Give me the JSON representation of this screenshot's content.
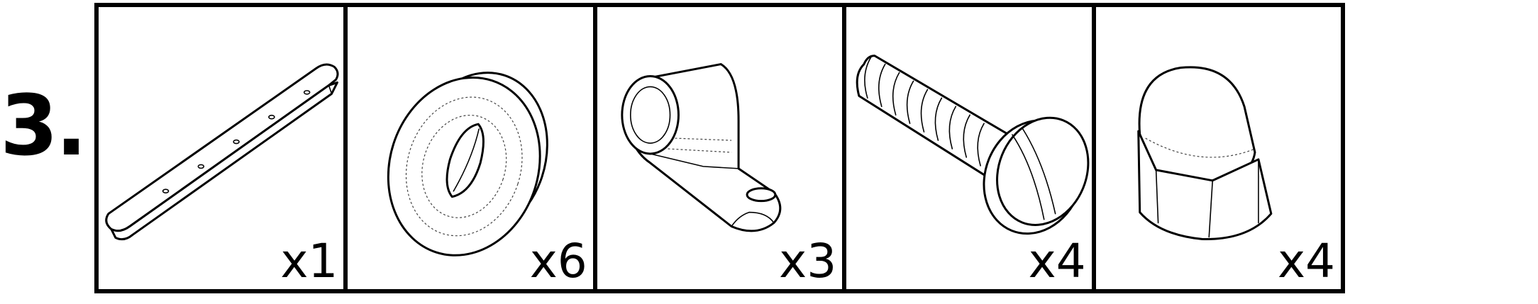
{
  "step": {
    "number": "3."
  },
  "parts": [
    {
      "name": "slotted-bar",
      "icon": "flat-bar-icon",
      "quantity": "x1"
    },
    {
      "name": "rubber-grommet",
      "icon": "grommet-icon",
      "quantity": "x6"
    },
    {
      "name": "cable-clamp",
      "icon": "cable-clamp-icon",
      "quantity": "x3"
    },
    {
      "name": "slotted-screw",
      "icon": "screw-icon",
      "quantity": "x4"
    },
    {
      "name": "acorn-nut",
      "icon": "acorn-nut-icon",
      "quantity": "x4"
    }
  ]
}
